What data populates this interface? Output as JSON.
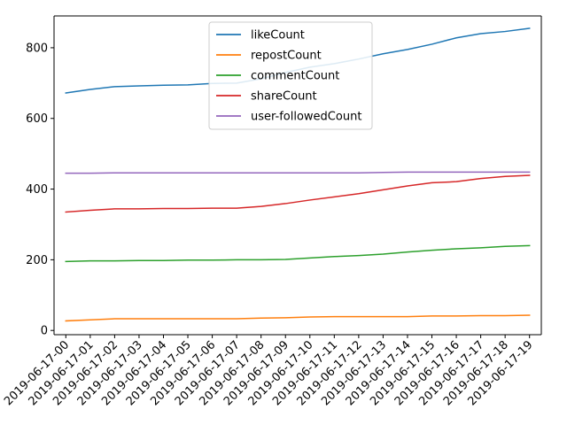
{
  "chart_data": {
    "type": "line",
    "title": "",
    "xlabel": "",
    "ylabel": "",
    "grid": false,
    "legend_position": "top-center",
    "x": [
      "2019-06-17-00",
      "2019-06-17-01",
      "2019-06-17-02",
      "2019-06-17-03",
      "2019-06-17-04",
      "2019-06-17-05",
      "2019-06-17-06",
      "2019-06-17-07",
      "2019-06-17-08",
      "2019-06-17-09",
      "2019-06-17-10",
      "2019-06-17-11",
      "2019-06-17-12",
      "2019-06-17-13",
      "2019-06-17-14",
      "2019-06-17-15",
      "2019-06-17-16",
      "2019-06-17-17",
      "2019-06-17-18",
      "2019-06-17-19"
    ],
    "ylim": [
      -12,
      890
    ],
    "yticks": [
      0,
      200,
      400,
      600,
      800
    ],
    "series": [
      {
        "name": "likeCount",
        "color": "#1f77b4",
        "values": [
          672,
          682,
          690,
          692,
          694,
          695,
          699,
          700,
          712,
          730,
          745,
          755,
          768,
          783,
          795,
          810,
          828,
          840,
          846,
          855
        ]
      },
      {
        "name": "repostCount",
        "color": "#ff7f0e",
        "values": [
          27,
          30,
          33,
          33,
          33,
          33,
          33,
          33,
          35,
          36,
          38,
          39,
          39,
          39,
          39,
          41,
          41,
          42,
          42,
          43
        ]
      },
      {
        "name": "commentCount",
        "color": "#2ca02c",
        "values": [
          195,
          197,
          197,
          198,
          198,
          199,
          199,
          200,
          200,
          201,
          205,
          209,
          212,
          216,
          222,
          227,
          231,
          234,
          238,
          240
        ]
      },
      {
        "name": "shareCount",
        "color": "#d62728",
        "values": [
          335,
          340,
          344,
          344,
          345,
          345,
          346,
          346,
          351,
          359,
          369,
          378,
          387,
          398,
          409,
          418,
          421,
          430,
          436,
          439
        ]
      },
      {
        "name": "user-followedCount",
        "color": "#9467bd",
        "values": [
          445,
          445,
          446,
          446,
          446,
          446,
          446,
          446,
          446,
          446,
          446,
          446,
          446,
          447,
          448,
          448,
          448,
          448,
          448,
          448
        ]
      }
    ]
  }
}
